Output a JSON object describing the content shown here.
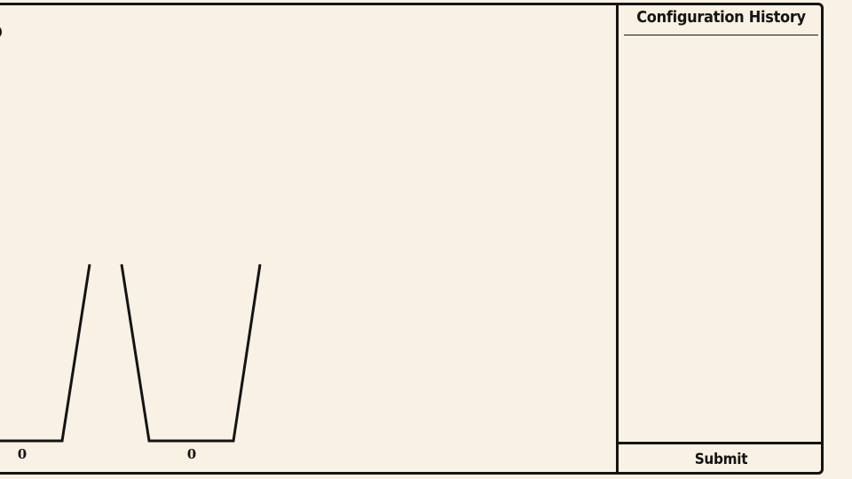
{
  "sidebar": {
    "title": "Configuration History",
    "history_items": [],
    "submit_label": "Submit"
  },
  "playfield": {
    "cups": [
      {
        "label": "0"
      },
      {
        "label": "0"
      }
    ]
  },
  "colors": {
    "background": "#f9f1e3",
    "ink": "#141414"
  }
}
